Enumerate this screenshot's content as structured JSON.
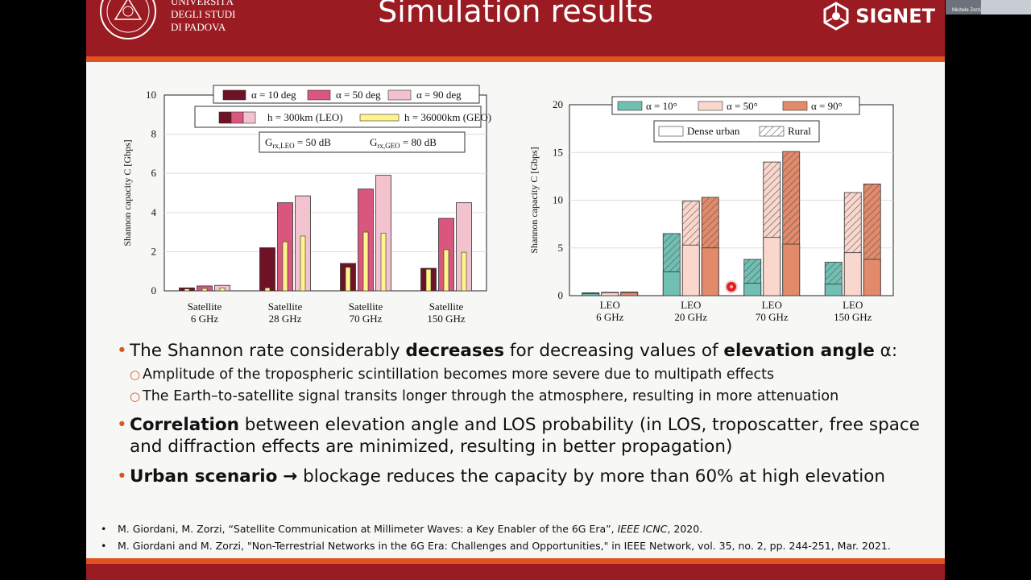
{
  "header": {
    "title": "Simulation results",
    "university": [
      "UNIVERSITÀ",
      "DEGLI STUDI",
      "DI PADOVA"
    ],
    "signet": "SIGNET"
  },
  "colors": {
    "header_red": "#9b1b22",
    "accent_orange": "#e0531f"
  },
  "video_overlay": {
    "participant_label": "Michele Zorzi"
  },
  "chart_data": [
    {
      "type": "bar",
      "categories": [
        "Satellite\n6 GHz",
        "Satellite\n28 GHz",
        "Satellite\n70 GHz",
        "Satellite\n150 GHz"
      ],
      "category_lines": [
        [
          "Satellite",
          "6 GHz"
        ],
        [
          "Satellite",
          "28 GHz"
        ],
        [
          "Satellite",
          "70 GHz"
        ],
        [
          "Satellite",
          "150 GHz"
        ]
      ],
      "ylabel": "Shannon capacity C [Gbps]",
      "ylim": [
        0,
        10
      ],
      "yticks": [
        "0",
        "2",
        "4",
        "6",
        "8",
        "10"
      ],
      "grid": true,
      "series": [
        {
          "name": "α = 10 deg",
          "color": "#6e1226",
          "values": [
            0.15,
            2.2,
            1.4,
            1.15
          ]
        },
        {
          "name": "α = 50 deg",
          "color": "#d9577f",
          "values": [
            0.25,
            4.5,
            5.2,
            3.7
          ]
        },
        {
          "name": "α = 90 deg",
          "color": "#f2c2cf",
          "values": [
            0.28,
            4.85,
            5.9,
            4.5
          ]
        }
      ],
      "geo_values": [
        0.1,
        2.5,
        3.0,
        2.1
      ],
      "geo_inner_values": [
        [
          0.1,
          0.12,
          0.15
        ],
        [
          0.15,
          2.5,
          2.8
        ],
        [
          1.2,
          3.0,
          2.95
        ],
        [
          1.1,
          2.1,
          1.97
        ]
      ],
      "legend": {
        "alpha_entries": [
          "α = 10 deg",
          "α = 50 deg",
          "α = 90 deg"
        ],
        "orbit_entries": [
          "h = 300km (LEO)",
          "h = 36000km (GEO)"
        ],
        "gain_box": [
          "G",
          "rx,LEO",
          " = 50 dB",
          "G",
          "rx,GEO",
          " = 80 dB"
        ],
        "position": "top-left"
      }
    },
    {
      "type": "bar",
      "categories": [
        "LEO\n6 GHz",
        "LEO\n20 GHz",
        "LEO\n70 GHz",
        "LEO\n150 GHz"
      ],
      "category_lines": [
        [
          "LEO",
          "6 GHz"
        ],
        [
          "LEO",
          "20 GHz"
        ],
        [
          "LEO",
          "70 GHz"
        ],
        [
          "LEO",
          "150 GHz"
        ]
      ],
      "ylabel": "Shannon capacity C [Gbps]",
      "ylim": [
        0,
        20
      ],
      "yticks": [
        "0",
        "5",
        "10",
        "15",
        "20"
      ],
      "grid": true,
      "series": [
        {
          "name": "α = 10°",
          "color": "#6fbfb3",
          "dense_urban": [
            0.2,
            2.5,
            1.3,
            1.2
          ],
          "rural": [
            0.3,
            6.5,
            3.8,
            3.5
          ]
        },
        {
          "name": "α = 50°",
          "color": "#fad7cc",
          "dense_urban": [
            0.3,
            5.3,
            6.1,
            4.5
          ],
          "rural": [
            0.35,
            9.9,
            14.0,
            10.8
          ]
        },
        {
          "name": "α = 90°",
          "color": "#e38a6b",
          "dense_urban": [
            0.32,
            5.0,
            5.4,
            3.8
          ],
          "rural": [
            0.38,
            10.3,
            15.1,
            11.7
          ]
        }
      ],
      "legend": {
        "alpha_entries": [
          "α = 10°",
          "α = 50°",
          "α = 90°"
        ],
        "scenario_entries": [
          "Dense urban",
          "Rural"
        ],
        "position": "top-center"
      }
    }
  ],
  "bullets": [
    {
      "parts": [
        {
          "text": "The Shannon rate considerably ",
          "bold": false
        },
        {
          "text": "decreases",
          "bold": true
        },
        {
          "text": " for decreasing values of  ",
          "bold": false
        },
        {
          "text": "elevation angle",
          "bold": true
        },
        {
          "text": " α:",
          "bold": false
        }
      ],
      "subs": [
        "Amplitude of the tropospheric scintillation becomes more severe due to multipath effects",
        "The Earth–to-satellite signal transits longer through the atmosphere, resulting in more attenuation"
      ]
    },
    {
      "parts": [
        {
          "text": "Correlation",
          "bold": true
        },
        {
          "text": " between elevation angle and LOS probability (in LOS, troposcatter, free space and diffraction effects are minimized, resulting in better propagation)",
          "bold": false
        }
      ],
      "subs": []
    },
    {
      "parts": [
        {
          "text": "Urban scenario",
          "bold": true
        },
        {
          "text": " ",
          "bold": false
        },
        {
          "text": "→",
          "bold": true
        },
        {
          "text": " blockage reduces the capacity by more than 60% at high elevation",
          "bold": false
        }
      ],
      "subs": []
    }
  ],
  "references": [
    {
      "pre": "M. Giordani, M. Zorzi, “Satellite Communication at Millimeter Waves: a Key Enabler of the 6G Era”, ",
      "venue": "IEEE ICNC",
      "post": ", 2020."
    },
    {
      "pre": "M. Giordani and M. Zorzi, \"Non-Terrestrial Networks in the 6G Era: Challenges and Opportunities,\" in IEEE Network, vol. 35, no. 2, pp. 244-251, Mar. 2021.",
      "venue": "",
      "post": ""
    }
  ]
}
